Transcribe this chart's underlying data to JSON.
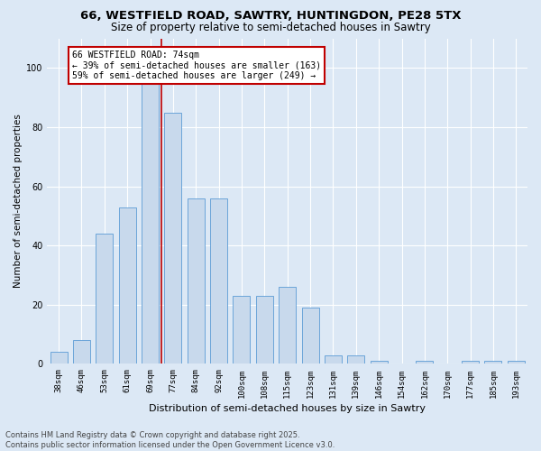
{
  "title1": "66, WESTFIELD ROAD, SAWTRY, HUNTINGDON, PE28 5TX",
  "title2": "Size of property relative to semi-detached houses in Sawtry",
  "xlabel": "Distribution of semi-detached houses by size in Sawtry",
  "ylabel": "Number of semi-detached properties",
  "bar_labels": [
    "38sqm",
    "46sqm",
    "53sqm",
    "61sqm",
    "69sqm",
    "77sqm",
    "84sqm",
    "92sqm",
    "100sqm",
    "108sqm",
    "115sqm",
    "123sqm",
    "131sqm",
    "139sqm",
    "146sqm",
    "154sqm",
    "162sqm",
    "170sqm",
    "177sqm",
    "185sqm",
    "193sqm"
  ],
  "bar_values": [
    4,
    8,
    44,
    53,
    95,
    85,
    56,
    56,
    23,
    23,
    26,
    19,
    3,
    3,
    1,
    0,
    1,
    0,
    1,
    1,
    1
  ],
  "bar_color": "#c8d9ec",
  "bar_edge_color": "#5b9bd5",
  "vline_color": "#c00000",
  "annotation_box_color": "#c00000",
  "background_color": "#dce8f5",
  "ylim_max": 110,
  "yticks": [
    0,
    20,
    40,
    60,
    80,
    100
  ],
  "grid_color": "#ffffff",
  "footer1": "Contains HM Land Registry data © Crown copyright and database right 2025.",
  "footer2": "Contains public sector information licensed under the Open Government Licence v3.0.",
  "ann_line1": "66 WESTFIELD ROAD: 74sqm",
  "ann_line2": "← 39% of semi-detached houses are smaller (163)",
  "ann_line3": "59% of semi-detached houses are larger (249) →"
}
